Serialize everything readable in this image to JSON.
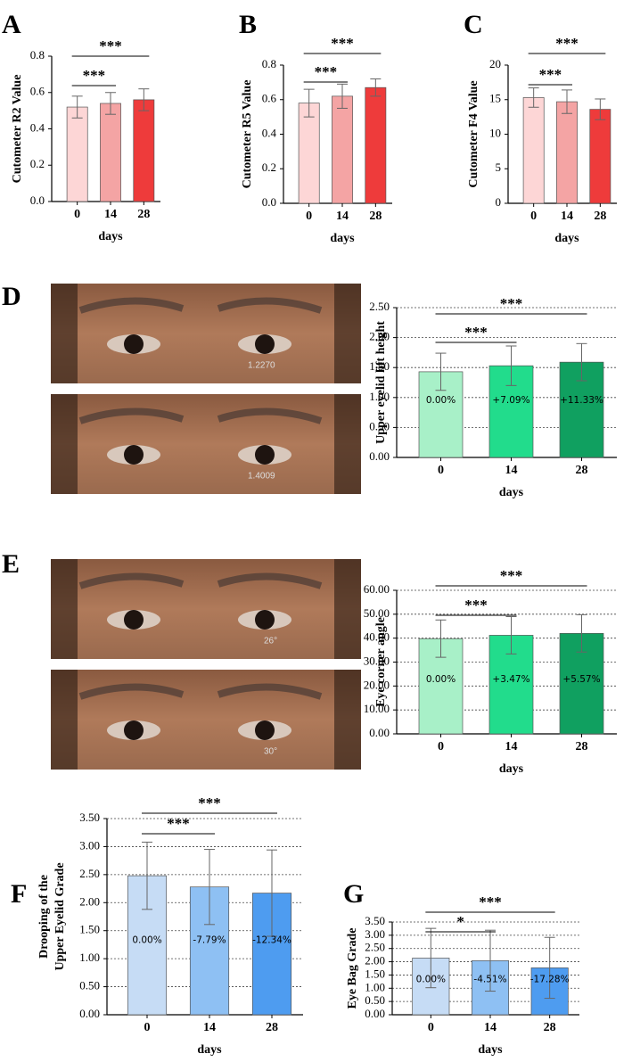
{
  "panel_letters": [
    "A",
    "B",
    "C",
    "D",
    "E",
    "F",
    "G"
  ],
  "photo_labels": {
    "D": [
      "1.2270",
      "1.4009"
    ],
    "E": [
      "26°",
      "30°"
    ]
  },
  "chart_data": [
    {
      "type": "bar",
      "ylabel": "Cutometer R2 Value",
      "xlabel": "days",
      "categories": [
        "0",
        "14",
        "28"
      ],
      "values": [
        0.52,
        0.54,
        0.56
      ],
      "errors": [
        0.06,
        0.06,
        0.06
      ],
      "colors": [
        "#fdd6d6",
        "#f4a4a4",
        "#ee3b3b"
      ],
      "ylim": [
        0,
        0.8
      ],
      "yticks": [
        {
          "value": 0,
          "label": "0.0"
        },
        {
          "value": 0.2,
          "label": "0.2"
        },
        {
          "value": 0.4,
          "label": "0.4"
        },
        {
          "value": 0.6,
          "label": "0.6"
        },
        {
          "value": 0.8,
          "label": "0.8"
        }
      ],
      "grid": false,
      "significance": [
        {
          "label": "***",
          "pair": [
            0,
            1
          ]
        },
        {
          "label": "***",
          "pair": [
            0,
            2
          ]
        }
      ]
    },
    {
      "type": "bar",
      "ylabel": "Cutometer R5 Value",
      "xlabel": "days",
      "categories": [
        "0",
        "14",
        "28"
      ],
      "values": [
        0.58,
        0.62,
        0.67
      ],
      "errors": [
        0.08,
        0.07,
        0.05
      ],
      "colors": [
        "#fdd6d6",
        "#f4a4a4",
        "#ee3b3b"
      ],
      "ylim": [
        0,
        0.8
      ],
      "yticks": [
        {
          "value": 0,
          "label": "0.0"
        },
        {
          "value": 0.2,
          "label": "0.2"
        },
        {
          "value": 0.4,
          "label": "0.4"
        },
        {
          "value": 0.6,
          "label": "0.6"
        },
        {
          "value": 0.8,
          "label": "0.8"
        }
      ],
      "grid": false,
      "significance": [
        {
          "label": "***",
          "pair": [
            0,
            1
          ]
        },
        {
          "label": "***",
          "pair": [
            0,
            2
          ]
        }
      ]
    },
    {
      "type": "bar",
      "ylabel": "Cutometer F4 Value",
      "xlabel": "days",
      "categories": [
        "0",
        "14",
        "28"
      ],
      "values": [
        15.3,
        14.7,
        13.6
      ],
      "errors": [
        1.4,
        1.7,
        1.5
      ],
      "colors": [
        "#fdd6d6",
        "#f4a4a4",
        "#ee3b3b"
      ],
      "ylim": [
        0,
        20
      ],
      "yticks": [
        0,
        5,
        10,
        15,
        20
      ],
      "grid": false,
      "significance": [
        {
          "label": "***",
          "pair": [
            0,
            1
          ]
        },
        {
          "label": "***",
          "pair": [
            0,
            2
          ]
        }
      ]
    },
    {
      "type": "bar",
      "ylabel": "Upper eyelid lift height",
      "xlabel": "days",
      "categories": [
        "0",
        "14",
        "28"
      ],
      "values": [
        1.43,
        1.53,
        1.59
      ],
      "errors": [
        0.31,
        0.33,
        0.31
      ],
      "colors": [
        "#a8f0c8",
        "#22dc8c",
        "#10a060"
      ],
      "bar_texts": [
        "0.00%",
        "+7.09%",
        "+11.33%"
      ],
      "ylim": [
        0,
        2.5
      ],
      "yticks": [
        {
          "value": 0,
          "label": "0.00"
        },
        {
          "value": 0.5,
          "label": "0.50"
        },
        {
          "value": 1,
          "label": "1.00"
        },
        {
          "value": 1.5,
          "label": "1.50"
        },
        {
          "value": 2,
          "label": "2.00"
        },
        {
          "value": 2.5,
          "label": "2.50"
        }
      ],
      "grid": true,
      "significance": [
        {
          "label": "***",
          "pair": [
            0,
            1
          ]
        },
        {
          "label": "***",
          "pair": [
            0,
            2
          ]
        }
      ]
    },
    {
      "type": "bar",
      "ylabel": "Eye corner angle",
      "xlabel": "days",
      "categories": [
        "0",
        "14",
        "28"
      ],
      "values": [
        39.8,
        41.2,
        42.0
      ],
      "errors": [
        7.8,
        7.8,
        7.8
      ],
      "colors": [
        "#a8f0c8",
        "#22dc8c",
        "#10a060"
      ],
      "bar_texts": [
        "0.00%",
        "+3.47%",
        "+5.57%"
      ],
      "ylim": [
        0,
        60
      ],
      "yticks": [
        {
          "value": 0,
          "label": "0.00"
        },
        {
          "value": 10,
          "label": "10.00"
        },
        {
          "value": 20,
          "label": "20.00"
        },
        {
          "value": 30,
          "label": "30.00"
        },
        {
          "value": 40,
          "label": "40.00"
        },
        {
          "value": 50,
          "label": "50.00"
        },
        {
          "value": 60,
          "label": "60.00"
        }
      ],
      "grid": true,
      "significance": [
        {
          "label": "***",
          "pair": [
            0,
            1
          ]
        },
        {
          "label": "***",
          "pair": [
            0,
            2
          ]
        }
      ]
    },
    {
      "type": "bar",
      "ylabel": [
        "Drooping of the",
        "Upper Eyelid Grade"
      ],
      "xlabel": "days",
      "categories": [
        "0",
        "14",
        "28"
      ],
      "values": [
        2.48,
        2.28,
        2.17
      ],
      "errors": [
        0.6,
        0.67,
        0.77
      ],
      "colors": [
        "#c6dcf5",
        "#8ec0f3",
        "#4e9cf0"
      ],
      "bar_texts": [
        "0.00%",
        "-7.79%",
        "-12.34%"
      ],
      "ylim": [
        0,
        3.5
      ],
      "yticks": [
        {
          "value": 0,
          "label": "0.00"
        },
        {
          "value": 0.5,
          "label": "0.50"
        },
        {
          "value": 1,
          "label": "1.00"
        },
        {
          "value": 1.5,
          "label": "1.50"
        },
        {
          "value": 2,
          "label": "2.00"
        },
        {
          "value": 2.5,
          "label": "2.50"
        },
        {
          "value": 3,
          "label": "3.00"
        },
        {
          "value": 3.5,
          "label": "3.50"
        }
      ],
      "grid": true,
      "significance": [
        {
          "label": "***",
          "pair": [
            0,
            1
          ]
        },
        {
          "label": "***",
          "pair": [
            0,
            2
          ]
        }
      ]
    },
    {
      "type": "bar",
      "ylabel": "Eye Bag Grade",
      "xlabel": "days",
      "categories": [
        "0",
        "14",
        "28"
      ],
      "values": [
        2.14,
        2.04,
        1.77
      ],
      "errors": [
        1.12,
        1.15,
        1.15
      ],
      "colors": [
        "#c6dcf5",
        "#8ec0f3",
        "#4e9cf0"
      ],
      "bar_texts": [
        "0.00%",
        "-4.51%",
        "-17.28%"
      ],
      "ylim": [
        0,
        3.5
      ],
      "yticks": [
        {
          "value": 0,
          "label": "0.00"
        },
        {
          "value": 0.5,
          "label": "0.50"
        },
        {
          "value": 1,
          "label": "1.00"
        },
        {
          "value": 1.5,
          "label": "1.50"
        },
        {
          "value": 2,
          "label": "2.00"
        },
        {
          "value": 2.5,
          "label": "2.50"
        },
        {
          "value": 3,
          "label": "3.00"
        },
        {
          "value": 3.5,
          "label": "3.50"
        }
      ],
      "grid": true,
      "significance": [
        {
          "label": "*",
          "pair": [
            0,
            1
          ]
        },
        {
          "label": "***",
          "pair": [
            0,
            2
          ]
        }
      ]
    }
  ]
}
